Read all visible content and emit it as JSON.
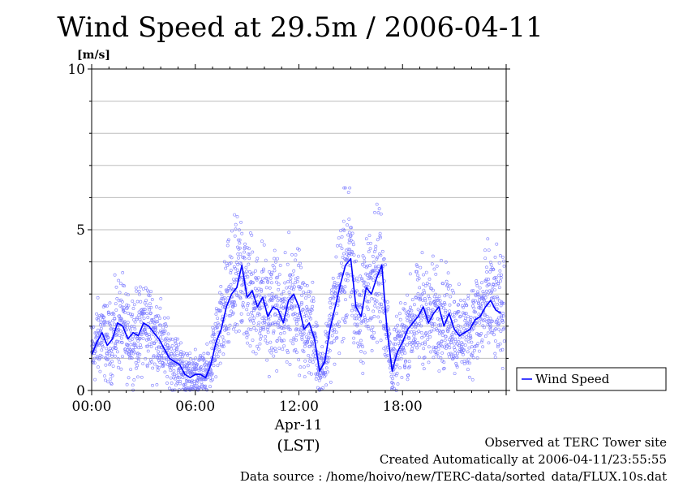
{
  "chart_data": {
    "type": "line",
    "title": "Wind Speed at 29.5m / 2006-04-11",
    "ylabel": "[m/s]",
    "ylim": [
      0,
      10
    ],
    "xlim_hours": [
      0,
      24
    ],
    "grid": true,
    "legend": {
      "position": "right",
      "entries": [
        "Wind Speed"
      ]
    },
    "y_ticks": [
      "0",
      "5",
      "10"
    ],
    "x_ticks": [
      {
        "hour": 0,
        "label": "00:00"
      },
      {
        "hour": 6,
        "label": "06:00"
      },
      {
        "hour": 12,
        "label": "12:00"
      },
      {
        "hour": 18,
        "label": "18:00"
      }
    ],
    "x_date_label": "Apr-11",
    "x_timezone_label": "(LST)",
    "series": [
      {
        "name": "Wind Speed",
        "color": "#0000ff",
        "scatter_color": "#7b7bff",
        "x_hours": [
          0.0,
          0.3,
          0.6,
          0.9,
          1.2,
          1.5,
          1.8,
          2.1,
          2.4,
          2.7,
          3.0,
          3.3,
          3.6,
          3.9,
          4.2,
          4.5,
          4.8,
          5.1,
          5.4,
          5.7,
          6.0,
          6.3,
          6.6,
          6.9,
          7.2,
          7.5,
          7.8,
          8.1,
          8.4,
          8.7,
          9.0,
          9.3,
          9.6,
          9.9,
          10.2,
          10.5,
          10.8,
          11.1,
          11.4,
          11.7,
          12.0,
          12.3,
          12.6,
          12.9,
          13.2,
          13.5,
          13.8,
          14.1,
          14.4,
          14.7,
          15.0,
          15.3,
          15.6,
          15.9,
          16.2,
          16.5,
          16.8,
          17.1,
          17.4,
          17.7,
          18.0,
          18.3,
          18.6,
          18.9,
          19.2,
          19.5,
          19.8,
          20.1,
          20.4,
          20.7,
          21.0,
          21.3,
          21.6,
          21.9,
          22.2,
          22.5,
          22.8,
          23.1,
          23.4,
          23.7
        ],
        "values": [
          1.1,
          1.5,
          1.8,
          1.4,
          1.6,
          2.1,
          2.0,
          1.6,
          1.8,
          1.7,
          2.1,
          2.0,
          1.8,
          1.6,
          1.3,
          1.0,
          0.9,
          0.8,
          0.5,
          0.4,
          0.5,
          0.5,
          0.4,
          0.8,
          1.5,
          1.9,
          2.6,
          3.0,
          3.2,
          3.9,
          2.9,
          3.1,
          2.6,
          2.9,
          2.3,
          2.6,
          2.5,
          2.1,
          2.8,
          3.0,
          2.6,
          1.9,
          2.1,
          1.6,
          0.6,
          0.9,
          1.9,
          2.6,
          3.3,
          3.9,
          4.1,
          2.6,
          2.3,
          3.2,
          3.0,
          3.5,
          3.9,
          1.9,
          0.6,
          1.2,
          1.5,
          1.9,
          2.1,
          2.3,
          2.6,
          2.1,
          2.4,
          2.6,
          2.0,
          2.4,
          1.9,
          1.7,
          1.8,
          1.9,
          2.2,
          2.3,
          2.6,
          2.8,
          2.5,
          2.4
        ]
      }
    ]
  },
  "footer": {
    "line1": "Observed at TERC Tower site",
    "line2": "Created Automatically at 2006-04-11/23:55:55",
    "line3": "Data source : /home/hoivo/new/TERC-data/sorted_data/FLUX.10s.dat"
  }
}
